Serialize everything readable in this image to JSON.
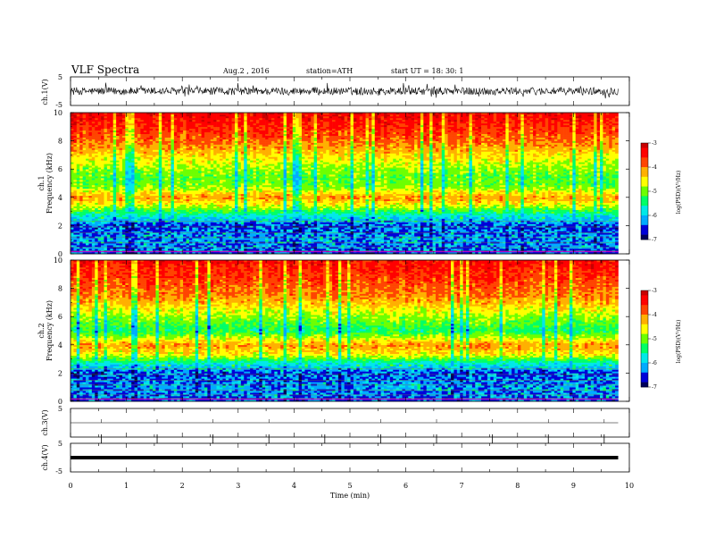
{
  "header": {
    "title": "VLF  Spectra",
    "date": "Aug.2  , 2016",
    "station": "station=ATH",
    "start": "start  UT  =    18: 30: 1"
  },
  "chart_data": [
    {
      "type": "line",
      "panel": "ch1-waveform",
      "ylabel": "ch.1(V)",
      "ylim": [
        -5,
        5
      ],
      "yticks": [
        "5",
        "-5"
      ],
      "description_values": {
        "mean": 0,
        "amplitude_approx": 1.5
      }
    },
    {
      "type": "heatmap",
      "panel": "ch1-spectrogram",
      "ylabel": "Frequency  (kHz)",
      "ylabel_prefix": "ch.1",
      "ylim": [
        0,
        10
      ],
      "yticks": [
        "0",
        "2",
        "4",
        "6",
        "8",
        "10"
      ],
      "band_profile_log_psd": [
        {
          "f_khz": 0.0,
          "value": -6.6
        },
        {
          "f_khz": 1.0,
          "value": -6.3
        },
        {
          "f_khz": 2.0,
          "value": -6.6
        },
        {
          "f_khz": 2.6,
          "value": -5.9
        },
        {
          "f_khz": 3.4,
          "value": -4.7
        },
        {
          "f_khz": 4.0,
          "value": -4.1
        },
        {
          "f_khz": 4.8,
          "value": -5.0
        },
        {
          "f_khz": 5.5,
          "value": -5.1
        },
        {
          "f_khz": 6.5,
          "value": -4.7
        },
        {
          "f_khz": 8.0,
          "value": -3.9
        },
        {
          "f_khz": 10.0,
          "value": -3.3
        }
      ],
      "colorbar": {
        "label": "log(PSD)(V²/Hz)",
        "ticks": [
          "-3",
          "-4",
          "-5",
          "-6",
          "-7"
        ]
      }
    },
    {
      "type": "heatmap",
      "panel": "ch2-spectrogram",
      "ylabel": "Frequency  (kHz)",
      "ylabel_prefix": "ch.2",
      "ylim": [
        0,
        10
      ],
      "yticks": [
        "0",
        "2",
        "4",
        "6",
        "8",
        "10"
      ],
      "band_profile_log_psd": [
        {
          "f_khz": 0.0,
          "value": -6.6
        },
        {
          "f_khz": 1.0,
          "value": -6.3
        },
        {
          "f_khz": 2.0,
          "value": -6.6
        },
        {
          "f_khz": 2.6,
          "value": -5.9
        },
        {
          "f_khz": 3.3,
          "value": -4.6
        },
        {
          "f_khz": 4.0,
          "value": -4.1
        },
        {
          "f_khz": 5.0,
          "value": -5.4
        },
        {
          "f_khz": 6.0,
          "value": -4.9
        },
        {
          "f_khz": 7.5,
          "value": -4.0
        },
        {
          "f_khz": 10.0,
          "value": -3.4
        }
      ],
      "colorbar": {
        "label": "log(PSD)(V²/Hz)",
        "ticks": [
          "-3",
          "-4",
          "-5",
          "-6",
          "-7"
        ]
      }
    },
    {
      "type": "line",
      "panel": "ch3-waveform",
      "ylabel": "ch.3(V)",
      "ylim": [
        -5,
        5
      ],
      "yticks": [
        "5"
      ],
      "values": {
        "constant": 0
      }
    },
    {
      "type": "line",
      "panel": "ch4-waveform",
      "ylabel": "ch.4(V)",
      "ylim": [
        -5,
        5
      ],
      "yticks": [
        "5",
        "-5"
      ],
      "values": {
        "constant": 0
      }
    }
  ],
  "x_axis": {
    "label": "Time  (min)",
    "xlim": [
      0,
      10
    ],
    "ticks": [
      "0",
      "1",
      "2",
      "3",
      "4",
      "5",
      "6",
      "7",
      "8",
      "9",
      "10"
    ],
    "data_end_min": 9.8
  },
  "colors": {
    "scale": [
      "#00005a",
      "#0000d8",
      "#00aaff",
      "#00e8e8",
      "#00ff66",
      "#6cff00",
      "#ffff00",
      "#ffb000",
      "#ff4400",
      "#ff0000",
      "#c80000"
    ],
    "line": "#000000",
    "purple_mark": "#cc00cc"
  }
}
